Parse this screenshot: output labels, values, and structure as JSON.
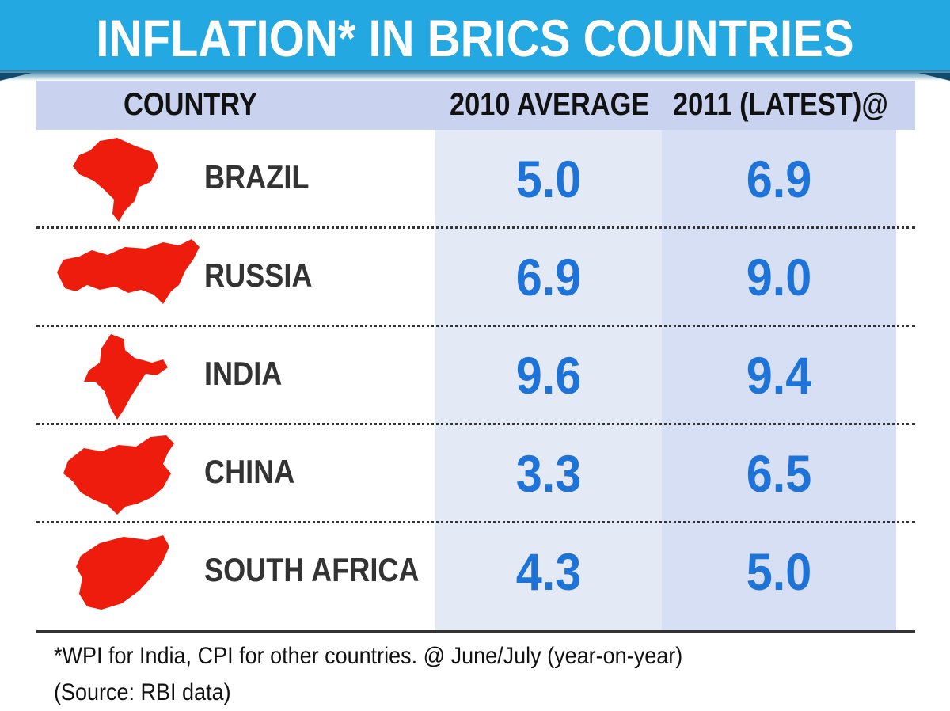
{
  "title": "INFLATION* IN BRICS COUNTRIES",
  "colors": {
    "banner": "#23a8e1",
    "value": "#1e73d8",
    "map": "#ee1c0c",
    "header": "#c9d3ef"
  },
  "chart_data": {
    "type": "table",
    "title": "INFLATION* IN BRICS COUNTRIES",
    "columns": [
      "COUNTRY",
      "2010 AVERAGE",
      "2011 (LATEST)@"
    ],
    "rows": [
      {
        "country": "BRAZIL",
        "icon": "brazil-map-icon",
        "avg_2010": "5.0",
        "latest_2011": "6.9"
      },
      {
        "country": "RUSSIA",
        "icon": "russia-map-icon",
        "avg_2010": "6.9",
        "latest_2011": "9.0"
      },
      {
        "country": "INDIA",
        "icon": "india-map-icon",
        "avg_2010": "9.6",
        "latest_2011": "9.4"
      },
      {
        "country": "CHINA",
        "icon": "china-map-icon",
        "avg_2010": "3.3",
        "latest_2011": "6.5"
      },
      {
        "country": "SOUTH AFRICA",
        "icon": "south-africa-map-icon",
        "avg_2010": "4.3",
        "latest_2011": "5.0"
      }
    ]
  },
  "footnote": "*WPI for India, CPI for other countries. @ June/July (year-on-year)",
  "source": "(Source: RBI data)"
}
